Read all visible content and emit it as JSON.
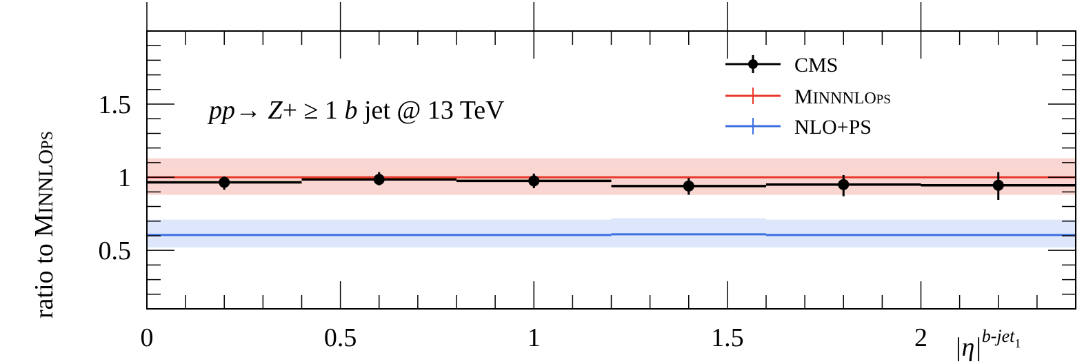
{
  "chart_data": {
    "type": "line",
    "ylabel_main": "ratio to M",
    "ylabel_smallcaps": "INNLO",
    "ylabel_sub": "PS",
    "xlabel_main": "|η|",
    "xlabel_sup": "b-jet",
    "xlabel_sup_sub": "1",
    "annotation": {
      "pp": "pp",
      "arrow": "→ ",
      "z": "Z",
      "plus_geq": "+ ≥ 1 ",
      "b": "b",
      "rest": " jet @ 13 TeV"
    },
    "xlim": [
      0,
      2.4
    ],
    "ylim": [
      0.1,
      2.0
    ],
    "xticks": [
      0,
      0.5,
      1,
      1.5,
      2
    ],
    "xtick_labels": [
      "0",
      "0.5",
      "1",
      "1.5",
      "2"
    ],
    "yticks": [
      0.5,
      1,
      1.5
    ],
    "ytick_labels": [
      "0.5",
      "1",
      "1.5"
    ],
    "bin_edges": [
      0,
      0.4,
      0.8,
      1.2,
      1.6,
      2.0,
      2.4
    ],
    "legend_placement": "top-right",
    "grid": false,
    "series": [
      {
        "key": "cms",
        "legend_main": "CMS",
        "legend_smallcaps": "",
        "legend_sub": "",
        "color": "#000000",
        "values": [
          0.965,
          0.985,
          0.975,
          0.94,
          0.95,
          0.945
        ],
        "points_x": [
          0.2,
          0.6,
          1.0,
          1.4,
          1.8,
          2.2
        ],
        "err_up": [
          0.04,
          0.05,
          0.05,
          0.055,
          0.065,
          0.09
        ],
        "err_down": [
          0.05,
          0.04,
          0.05,
          0.06,
          0.08,
          0.1
        ]
      },
      {
        "key": "minnlo",
        "legend_main": "M",
        "legend_smallcaps": "INNNLO",
        "legend_sub": "PS",
        "color": "#e8392a",
        "band_color": "#f9d6d1",
        "values": [
          1.0,
          1.0,
          1.0,
          1.0,
          1.0,
          1.0
        ],
        "band_low": [
          0.88,
          0.88,
          0.88,
          0.88,
          0.88,
          0.88
        ],
        "band_high": [
          1.13,
          1.13,
          1.13,
          1.13,
          1.13,
          1.13
        ]
      },
      {
        "key": "nlops",
        "legend_main": "NLO+PS",
        "legend_smallcaps": "",
        "legend_sub": "",
        "color": "#3b6fe0",
        "band_color": "#dde6fa",
        "values": [
          0.605,
          0.605,
          0.605,
          0.61,
          0.605,
          0.605
        ],
        "band_low": [
          0.52,
          0.52,
          0.52,
          0.52,
          0.52,
          0.52
        ],
        "band_high": [
          0.71,
          0.71,
          0.71,
          0.72,
          0.71,
          0.71
        ]
      }
    ]
  }
}
